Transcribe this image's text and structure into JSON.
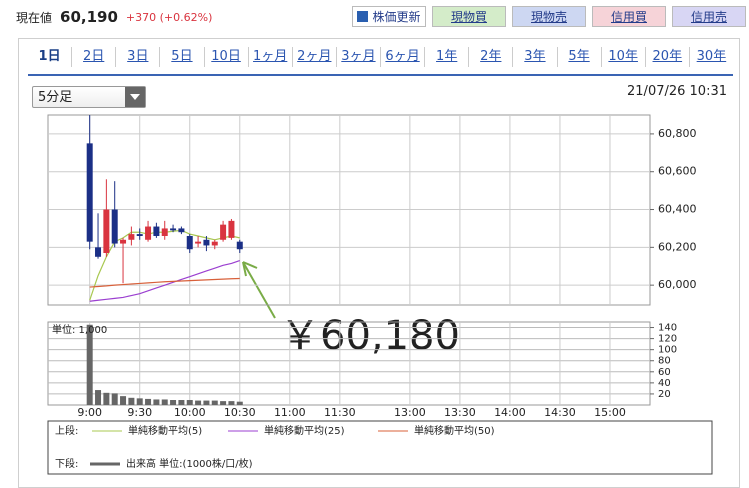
{
  "header": {
    "price_label": "現在値",
    "price": "60,190",
    "change": "+370 (+0.62%)",
    "buttons": [
      "株価更新",
      "現物買",
      "現物売",
      "信用買",
      "信用売"
    ]
  },
  "tabs": [
    "1日",
    "2日",
    "3日",
    "5日",
    "10日",
    "1ヶ月",
    "2ヶ月",
    "3ヶ月",
    "6ヶ月",
    "1年",
    "2年",
    "3年",
    "5年",
    "10年",
    "20年",
    "30年"
  ],
  "selected_tab": 0,
  "interval": "5分足",
  "timestamp": "21/07/26 10:31",
  "chart_data": [
    {
      "type": "candlestick",
      "x": [
        0,
        5,
        10,
        15,
        20,
        25,
        30,
        35,
        40,
        45,
        50,
        55,
        60,
        65,
        70,
        75,
        80,
        85,
        90
      ],
      "open": [
        60750,
        60200,
        60170,
        60400,
        60220,
        60240,
        60270,
        60240,
        60310,
        60260,
        60300,
        60300,
        60260,
        60220,
        60240,
        60210,
        60240,
        60250,
        60230
      ],
      "high": [
        60900,
        60380,
        60560,
        60550,
        60250,
        60310,
        60300,
        60340,
        60330,
        60340,
        60320,
        60310,
        60270,
        60260,
        60260,
        60240,
        60340,
        60350,
        60240
      ],
      "low": [
        60190,
        60140,
        60150,
        60200,
        60010,
        60210,
        60240,
        60230,
        60250,
        60240,
        60280,
        60270,
        60170,
        60200,
        60180,
        60190,
        60230,
        60240,
        60170
      ],
      "close": [
        60230,
        60150,
        60400,
        60220,
        60240,
        60270,
        60260,
        60310,
        60260,
        60300,
        60290,
        60280,
        60190,
        60230,
        60210,
        60230,
        60320,
        60340,
        60190
      ],
      "up_color": "#d9343f",
      "down_color": "#1b2f86",
      "series": [
        {
          "name": "単純移動平均(5)",
          "color": "#a8c850",
          "values": [
            59920,
            60050,
            60150,
            60230,
            60250,
            60280,
            60280,
            60270,
            60280,
            60280,
            60285,
            60290,
            60270,
            60260,
            60250,
            60240,
            60250,
            60260,
            60250
          ]
        },
        {
          "name": "単純移動平均(25)",
          "color": "#9b3fd0",
          "values": [
            59915,
            59920,
            59925,
            59930,
            59935,
            59945,
            59955,
            59970,
            59985,
            60000,
            60015,
            60030,
            60045,
            60060,
            60075,
            60090,
            60105,
            60115,
            60130
          ]
        },
        {
          "name": "単純移動平均(50)",
          "color": "#d8603a",
          "values": [
            59990,
            59993,
            59996,
            60000,
            60003,
            60006,
            60009,
            60012,
            60015,
            60018,
            60020,
            60022,
            60024,
            60026,
            60028,
            60030,
            60032,
            60034,
            60035
          ]
        }
      ],
      "legend_label": "上段:",
      "xlim": [
        -25,
        384
      ],
      "x_break": [
        150,
        210
      ],
      "ylim": [
        59895,
        60900
      ],
      "yticks": [
        {
          "value": 60000,
          "label": "60,000"
        },
        {
          "value": 60200,
          "label": "60,200"
        },
        {
          "value": 60400,
          "label": "60,400"
        },
        {
          "value": 60600,
          "label": "60,600"
        },
        {
          "value": 60800,
          "label": "60,800"
        }
      ],
      "grid": true,
      "annotation": "￥60,180",
      "annotation_color": "#7aac47"
    },
    {
      "type": "bar",
      "x": [
        0,
        5,
        10,
        15,
        20,
        25,
        30,
        35,
        40,
        45,
        50,
        55,
        60,
        65,
        70,
        75,
        80,
        85,
        90
      ],
      "series": [
        {
          "name": "出来高 単位:(1000株/口/枚)",
          "color": "#666666",
          "values": [
            145,
            27,
            22,
            21,
            16,
            13,
            12,
            11,
            10,
            10,
            9,
            9,
            9,
            8,
            8,
            8,
            7,
            7,
            6
          ]
        }
      ],
      "legend_label": "下段:",
      "unit_label": "単位: 1,000",
      "xlim": [
        -25,
        384
      ],
      "x_break": [
        150,
        210
      ],
      "xticks": [
        {
          "value": 0,
          "label": "9:00"
        },
        {
          "value": 30,
          "label": "9:30"
        },
        {
          "value": 60,
          "label": "10:00"
        },
        {
          "value": 90,
          "label": "10:30"
        },
        {
          "value": 120,
          "label": "11:00"
        },
        {
          "value": 150,
          "label": "11:30"
        },
        {
          "value": 240,
          "label": "13:00"
        },
        {
          "value": 270,
          "label": "13:30"
        },
        {
          "value": 300,
          "label": "14:00"
        },
        {
          "value": 330,
          "label": "14:30"
        },
        {
          "value": 360,
          "label": "15:00"
        }
      ],
      "ylim": [
        0,
        150
      ],
      "yticks": [
        20,
        40,
        60,
        80,
        100,
        120,
        140
      ],
      "grid": true
    }
  ]
}
